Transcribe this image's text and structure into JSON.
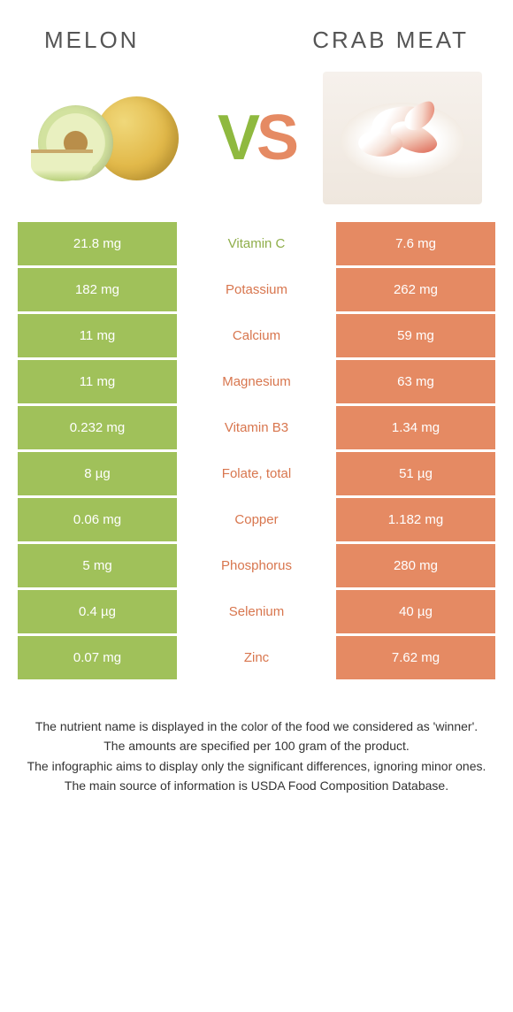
{
  "header": {
    "left_title": "Melon",
    "right_title": "Crab meat",
    "vs_left": "V",
    "vs_right": "S"
  },
  "colors": {
    "left_bg": "#a0c15a",
    "right_bg": "#e58a63",
    "left_text": "#8fae4a",
    "right_text": "#d8764e",
    "page_bg": "#ffffff"
  },
  "rows": [
    {
      "left": "21.8 mg",
      "label": "Vitamin C",
      "right": "7.6 mg",
      "winner": "left"
    },
    {
      "left": "182 mg",
      "label": "Potassium",
      "right": "262 mg",
      "winner": "right"
    },
    {
      "left": "11 mg",
      "label": "Calcium",
      "right": "59 mg",
      "winner": "right"
    },
    {
      "left": "11 mg",
      "label": "Magnesium",
      "right": "63 mg",
      "winner": "right"
    },
    {
      "left": "0.232 mg",
      "label": "Vitamin B3",
      "right": "1.34 mg",
      "winner": "right"
    },
    {
      "left": "8 µg",
      "label": "Folate, total",
      "right": "51 µg",
      "winner": "right"
    },
    {
      "left": "0.06 mg",
      "label": "Copper",
      "right": "1.182 mg",
      "winner": "right"
    },
    {
      "left": "5 mg",
      "label": "Phosphorus",
      "right": "280 mg",
      "winner": "right"
    },
    {
      "left": "0.4 µg",
      "label": "Selenium",
      "right": "40 µg",
      "winner": "right"
    },
    {
      "left": "0.07 mg",
      "label": "Zinc",
      "right": "7.62 mg",
      "winner": "right"
    }
  ],
  "footnotes": [
    "The nutrient name is displayed in the color of the food we considered as 'winner'.",
    "The amounts are specified per 100 gram of the product.",
    "The infographic aims to display only the significant differences, ignoring minor ones.",
    "The main source of information is USDA Food Composition Database."
  ]
}
